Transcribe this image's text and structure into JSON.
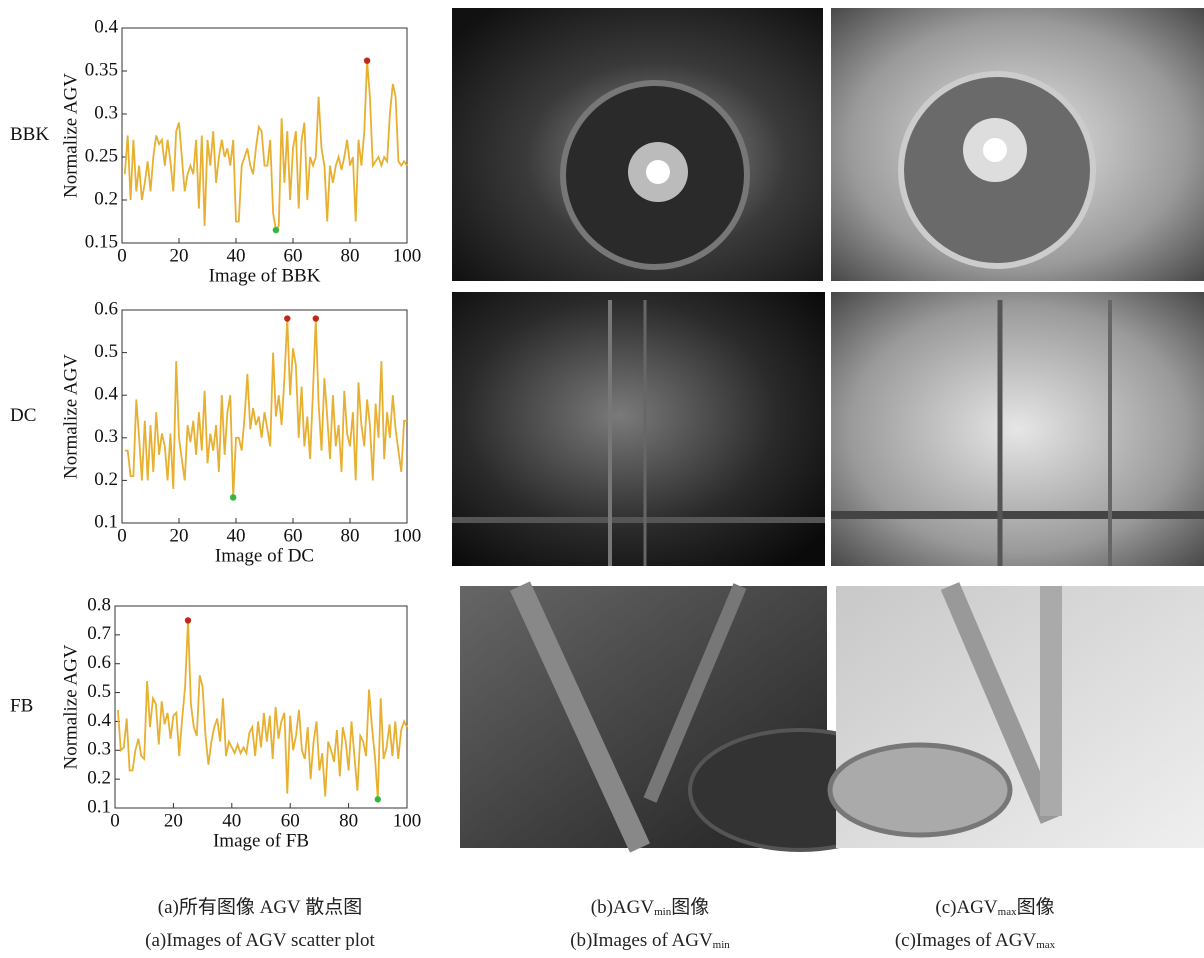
{
  "chart_data": [
    {
      "type": "line",
      "row_label": "BBK",
      "ylabel": "Normalize AGV",
      "xlabel": "Image of BBK",
      "color": "#e8b030",
      "xlim": [
        0,
        100
      ],
      "xticks": [
        0,
        20,
        40,
        60,
        80,
        100
      ],
      "ylim": [
        0.15,
        0.4
      ],
      "yticks": [
        0.15,
        0.2,
        0.25,
        0.3,
        0.35,
        0.4
      ],
      "x": [
        1,
        2,
        3,
        4,
        5,
        6,
        7,
        8,
        9,
        10,
        11,
        12,
        13,
        14,
        15,
        16,
        17,
        18,
        19,
        20,
        21,
        22,
        23,
        24,
        25,
        26,
        27,
        28,
        29,
        30,
        31,
        32,
        33,
        34,
        35,
        36,
        37,
        38,
        39,
        40,
        41,
        42,
        43,
        44,
        45,
        46,
        47,
        48,
        49,
        50,
        51,
        52,
        53,
        54,
        55,
        56,
        57,
        58,
        59,
        60,
        61,
        62,
        63,
        64,
        65,
        66,
        67,
        68,
        69,
        70,
        71,
        72,
        73,
        74,
        75,
        76,
        77,
        78,
        79,
        80,
        81,
        82,
        83,
        84,
        85,
        86,
        87,
        88,
        89,
        90,
        91,
        92,
        93,
        94,
        95,
        96,
        97,
        98,
        99,
        100
      ],
      "values": [
        0.23,
        0.275,
        0.2,
        0.27,
        0.21,
        0.24,
        0.2,
        0.22,
        0.245,
        0.21,
        0.25,
        0.275,
        0.265,
        0.27,
        0.24,
        0.27,
        0.245,
        0.21,
        0.28,
        0.29,
        0.25,
        0.21,
        0.23,
        0.24,
        0.23,
        0.27,
        0.19,
        0.275,
        0.17,
        0.27,
        0.24,
        0.28,
        0.22,
        0.25,
        0.27,
        0.25,
        0.26,
        0.24,
        0.27,
        0.175,
        0.175,
        0.24,
        0.25,
        0.26,
        0.24,
        0.23,
        0.26,
        0.285,
        0.28,
        0.24,
        0.24,
        0.27,
        0.185,
        0.165,
        0.17,
        0.295,
        0.22,
        0.28,
        0.2,
        0.26,
        0.28,
        0.19,
        0.27,
        0.29,
        0.2,
        0.25,
        0.24,
        0.25,
        0.32,
        0.26,
        0.24,
        0.175,
        0.24,
        0.22,
        0.24,
        0.25,
        0.235,
        0.25,
        0.27,
        0.24,
        0.25,
        0.175,
        0.27,
        0.24,
        0.28,
        0.362,
        0.32,
        0.24,
        0.245,
        0.25,
        0.24,
        0.25,
        0.245,
        0.3,
        0.335,
        0.32,
        0.245,
        0.24,
        0.245,
        0.24
      ],
      "highlights": [
        {
          "x": 86,
          "value": 0.362,
          "color": "#c0281c"
        },
        {
          "x": 54,
          "value": 0.165,
          "color": "#2fb83a"
        }
      ]
    },
    {
      "type": "line",
      "row_label": "DC",
      "ylabel": "Normalize AGV",
      "xlabel": "Image of DC",
      "color": "#e8b030",
      "xlim": [
        0,
        100
      ],
      "xticks": [
        0,
        20,
        40,
        60,
        80,
        100
      ],
      "ylim": [
        0.1,
        0.6
      ],
      "yticks": [
        0.1,
        0.2,
        0.3,
        0.4,
        0.5,
        0.6
      ],
      "x": [
        1,
        2,
        3,
        4,
        5,
        6,
        7,
        8,
        9,
        10,
        11,
        12,
        13,
        14,
        15,
        16,
        17,
        18,
        19,
        20,
        21,
        22,
        23,
        24,
        25,
        26,
        27,
        28,
        29,
        30,
        31,
        32,
        33,
        34,
        35,
        36,
        37,
        38,
        39,
        40,
        41,
        42,
        43,
        44,
        45,
        46,
        47,
        48,
        49,
        50,
        51,
        52,
        53,
        54,
        55,
        56,
        57,
        58,
        59,
        60,
        61,
        62,
        63,
        64,
        65,
        66,
        67,
        68,
        69,
        70,
        71,
        72,
        73,
        74,
        75,
        76,
        77,
        78,
        79,
        80,
        81,
        82,
        83,
        84,
        85,
        86,
        87,
        88,
        89,
        90,
        91,
        92,
        93,
        94,
        95,
        96,
        97,
        98,
        99,
        100
      ],
      "values": [
        0.27,
        0.27,
        0.21,
        0.21,
        0.39,
        0.3,
        0.2,
        0.34,
        0.2,
        0.33,
        0.22,
        0.36,
        0.26,
        0.31,
        0.28,
        0.2,
        0.31,
        0.18,
        0.48,
        0.3,
        0.25,
        0.2,
        0.33,
        0.29,
        0.34,
        0.26,
        0.36,
        0.27,
        0.41,
        0.24,
        0.31,
        0.27,
        0.33,
        0.22,
        0.4,
        0.26,
        0.36,
        0.4,
        0.16,
        0.3,
        0.3,
        0.27,
        0.35,
        0.45,
        0.32,
        0.37,
        0.33,
        0.35,
        0.3,
        0.36,
        0.32,
        0.28,
        0.5,
        0.35,
        0.4,
        0.33,
        0.44,
        0.58,
        0.4,
        0.51,
        0.47,
        0.3,
        0.42,
        0.28,
        0.35,
        0.25,
        0.41,
        0.58,
        0.38,
        0.27,
        0.44,
        0.35,
        0.25,
        0.4,
        0.28,
        0.33,
        0.22,
        0.41,
        0.31,
        0.28,
        0.36,
        0.2,
        0.43,
        0.33,
        0.28,
        0.39,
        0.33,
        0.2,
        0.38,
        0.3,
        0.48,
        0.25,
        0.36,
        0.3,
        0.4,
        0.32,
        0.27,
        0.22,
        0.34,
        0.34
      ],
      "highlights": [
        {
          "x": 58,
          "value": 0.58,
          "color": "#c0281c"
        },
        {
          "x": 68,
          "value": 0.58,
          "color": "#c0281c"
        },
        {
          "x": 39,
          "value": 0.16,
          "color": "#2fb83a"
        }
      ]
    },
    {
      "type": "line",
      "row_label": "FB",
      "ylabel": "Normalize AGV",
      "xlabel": "Image of  FB",
      "color": "#e8b030",
      "xlim": [
        0,
        100
      ],
      "xticks": [
        0,
        20,
        40,
        60,
        80,
        100
      ],
      "ylim": [
        0.1,
        0.8
      ],
      "yticks": [
        0.1,
        0.2,
        0.3,
        0.4,
        0.5,
        0.6,
        0.7,
        0.8
      ],
      "x": [
        1,
        2,
        3,
        4,
        5,
        6,
        7,
        8,
        9,
        10,
        11,
        12,
        13,
        14,
        15,
        16,
        17,
        18,
        19,
        20,
        21,
        22,
        23,
        24,
        25,
        26,
        27,
        28,
        29,
        30,
        31,
        32,
        33,
        34,
        35,
        36,
        37,
        38,
        39,
        40,
        41,
        42,
        43,
        44,
        45,
        46,
        47,
        48,
        49,
        50,
        51,
        52,
        53,
        54,
        55,
        56,
        57,
        58,
        59,
        60,
        61,
        62,
        63,
        64,
        65,
        66,
        67,
        68,
        69,
        70,
        71,
        72,
        73,
        74,
        75,
        76,
        77,
        78,
        79,
        80,
        81,
        82,
        83,
        84,
        85,
        86,
        87,
        88,
        89,
        90,
        91,
        92,
        93,
        94,
        95,
        96,
        97,
        98,
        99,
        100
      ],
      "values": [
        0.44,
        0.3,
        0.31,
        0.41,
        0.23,
        0.23,
        0.3,
        0.34,
        0.28,
        0.27,
        0.54,
        0.38,
        0.48,
        0.46,
        0.32,
        0.47,
        0.39,
        0.43,
        0.34,
        0.42,
        0.43,
        0.28,
        0.41,
        0.52,
        0.75,
        0.46,
        0.38,
        0.35,
        0.56,
        0.52,
        0.35,
        0.25,
        0.33,
        0.38,
        0.41,
        0.33,
        0.48,
        0.28,
        0.33,
        0.31,
        0.29,
        0.32,
        0.29,
        0.31,
        0.29,
        0.36,
        0.38,
        0.28,
        0.4,
        0.31,
        0.43,
        0.33,
        0.42,
        0.27,
        0.45,
        0.34,
        0.4,
        0.43,
        0.15,
        0.42,
        0.3,
        0.35,
        0.44,
        0.3,
        0.27,
        0.38,
        0.2,
        0.33,
        0.4,
        0.23,
        0.29,
        0.14,
        0.33,
        0.3,
        0.26,
        0.37,
        0.21,
        0.38,
        0.33,
        0.23,
        0.4,
        0.28,
        0.16,
        0.35,
        0.33,
        0.28,
        0.51,
        0.38,
        0.28,
        0.13,
        0.48,
        0.27,
        0.31,
        0.39,
        0.28,
        0.4,
        0.27,
        0.37,
        0.4,
        0.38
      ],
      "highlights": [
        {
          "x": 25,
          "value": 0.75,
          "color": "#c0281c"
        },
        {
          "x": 90,
          "value": 0.13,
          "color": "#2fb83a"
        }
      ]
    }
  ],
  "captions": {
    "a_cn": "(a)所有图像 AGV 散点图",
    "a_en": "(a)Images of AGV scatter plot",
    "b_cn": {
      "text": "(b)AGV",
      "sub": "min",
      "after": "图像"
    },
    "b_en": {
      "text": "(b)Images of AGV",
      "sub": "min"
    },
    "c_cn": {
      "text": "(c)AGV",
      "sub": "max",
      "after": "图像"
    },
    "c_en": {
      "text": "(c)Images of AGV",
      "sub": "max"
    }
  }
}
